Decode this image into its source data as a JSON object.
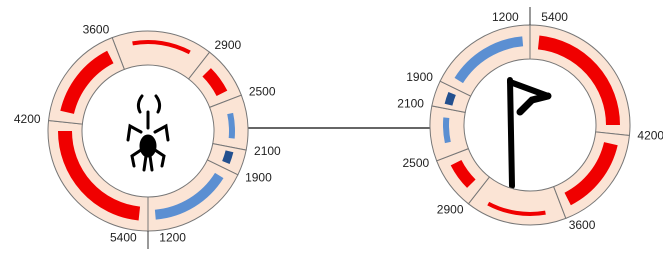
{
  "left_ring": {
    "labels": [
      "3600",
      "2900",
      "2500",
      "2100",
      "1900",
      "1200",
      "5400",
      "4200"
    ]
  },
  "right_ring": {
    "labels": [
      "3600",
      "2900",
      "2500",
      "2100",
      "1900",
      "1200",
      "5400",
      "4200"
    ]
  }
}
